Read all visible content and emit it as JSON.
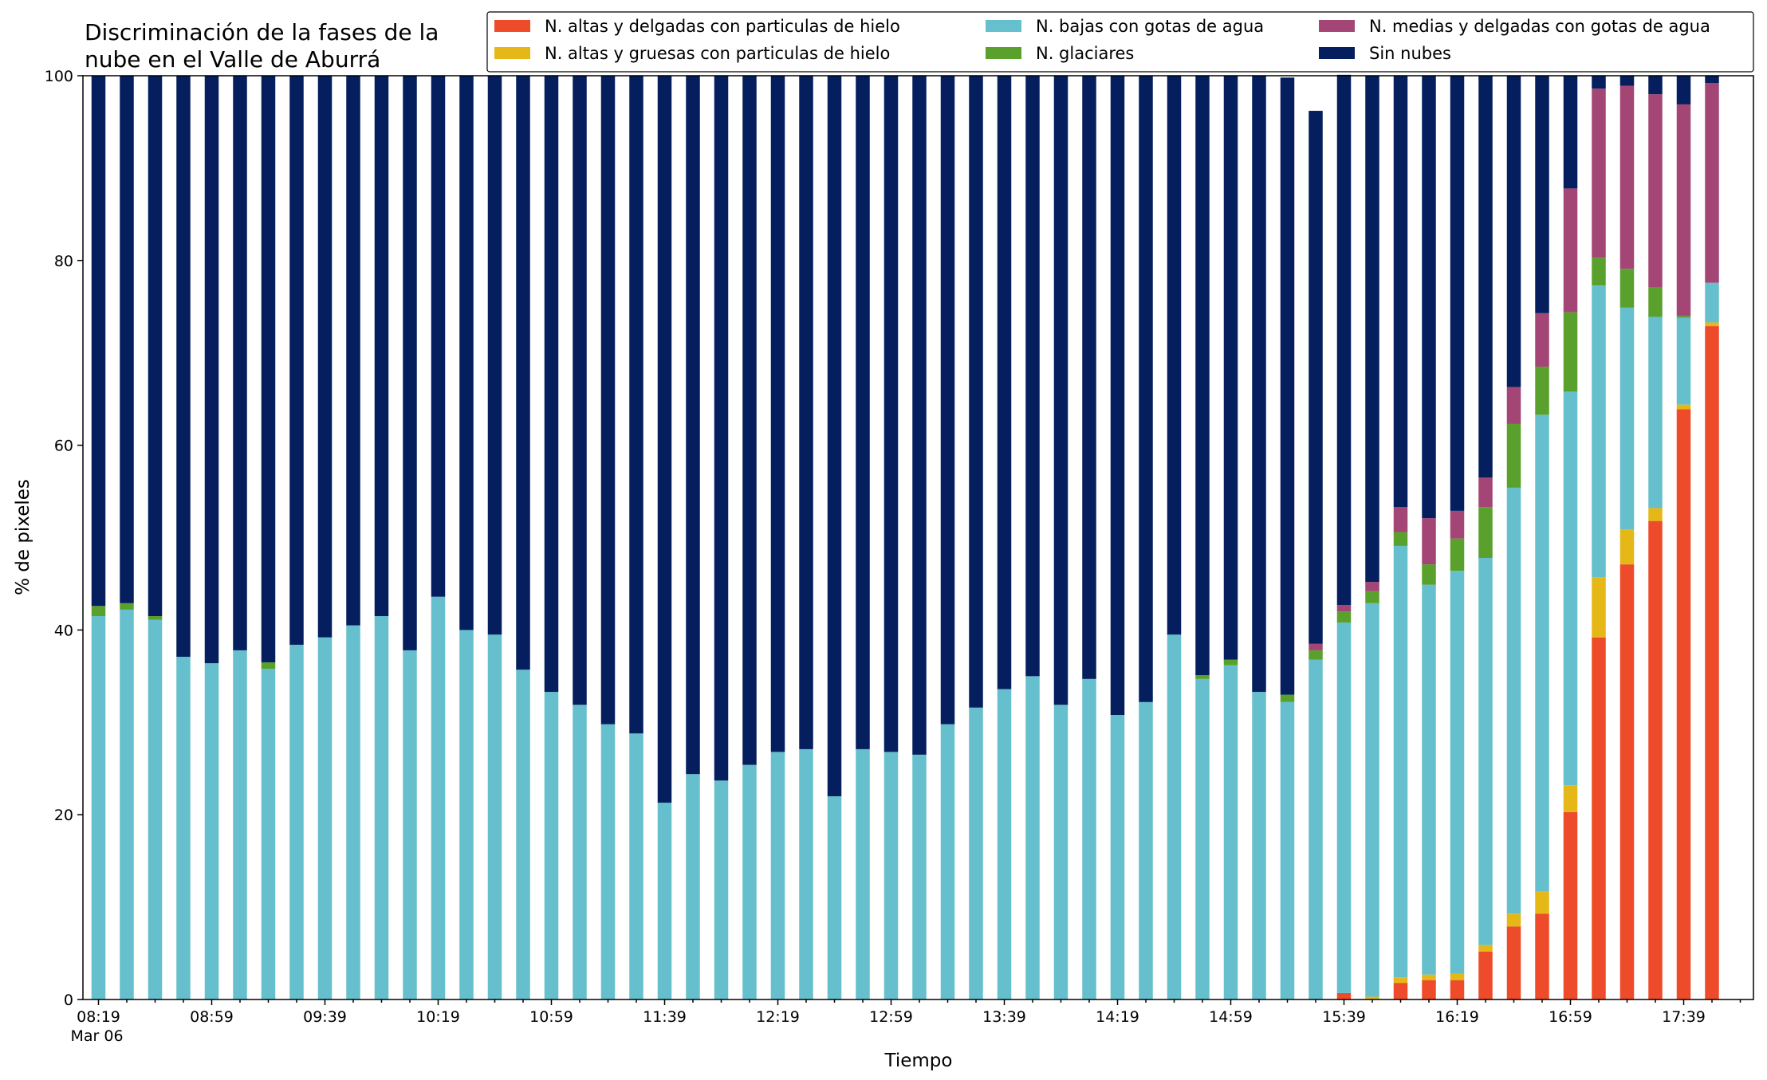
{
  "chart_data": {
    "type": "bar",
    "stacked": true,
    "title": "Discriminación de la fases de la\nnube en el Valle de Aburrá",
    "xlabel": "Tiempo",
    "ylabel": "% de pixeles",
    "ylim": [
      0,
      100
    ],
    "y_ticks": [
      0,
      20,
      40,
      60,
      80,
      100
    ],
    "x_tick_labels": [
      {
        "index": 0,
        "label": "08:19",
        "sublabel": "Mar 06"
      },
      {
        "index": 4,
        "label": "08:59"
      },
      {
        "index": 8,
        "label": "09:39"
      },
      {
        "index": 12,
        "label": "10:19"
      },
      {
        "index": 16,
        "label": "10:59"
      },
      {
        "index": 20,
        "label": "11:39"
      },
      {
        "index": 24,
        "label": "12:19"
      },
      {
        "index": 28,
        "label": "12:59"
      },
      {
        "index": 32,
        "label": "13:39"
      },
      {
        "index": 36,
        "label": "14:19"
      },
      {
        "index": 40,
        "label": "14:59"
      },
      {
        "index": 44,
        "label": "15:39"
      },
      {
        "index": 48,
        "label": "16:19"
      },
      {
        "index": 52,
        "label": "16:59"
      },
      {
        "index": 56,
        "label": "17:39"
      }
    ],
    "legend_position": "top-right",
    "grid": false,
    "series": [
      {
        "name": "N. altas y delgadas con particulas de hielo",
        "color": "#ee4b2b",
        "values": [
          0,
          0,
          0,
          0,
          0,
          0,
          0,
          0,
          0,
          0,
          0,
          0,
          0,
          0,
          0,
          0,
          0,
          0,
          0,
          0,
          0,
          0,
          0,
          0,
          0,
          0,
          0,
          0,
          0,
          0,
          0,
          0,
          0,
          0,
          0,
          0,
          0,
          0,
          0,
          0,
          0,
          0,
          0,
          0,
          0.7,
          0,
          1.8,
          2.1,
          2.1,
          5.2,
          7.9,
          9.3,
          20.3,
          39.2,
          47.1,
          51.8,
          63.9,
          72.9
        ]
      },
      {
        "name": "N. altas y gruesas con particulas de hielo",
        "color": "#e6b817",
        "values": [
          0,
          0,
          0,
          0,
          0,
          0,
          0,
          0,
          0,
          0,
          0,
          0,
          0,
          0,
          0,
          0,
          0,
          0,
          0,
          0,
          0,
          0,
          0,
          0,
          0,
          0,
          0,
          0,
          0,
          0,
          0,
          0,
          0,
          0,
          0,
          0,
          0,
          0,
          0,
          0,
          0,
          0,
          0,
          0,
          0,
          0.3,
          0.6,
          0.6,
          0.7,
          0.7,
          1.4,
          2.4,
          2.9,
          6.5,
          3.8,
          1.4,
          0.5,
          0.4
        ]
      },
      {
        "name": "N. bajas con gotas de agua",
        "color": "#66bfcc",
        "values": [
          41.5,
          42.2,
          41.1,
          37.1,
          36.4,
          37.8,
          35.8,
          38.4,
          39.2,
          40.5,
          41.5,
          37.8,
          43.6,
          40.0,
          39.5,
          35.7,
          33.3,
          31.9,
          29.8,
          28.8,
          21.3,
          24.4,
          23.7,
          25.4,
          26.8,
          27.1,
          22.0,
          27.1,
          26.8,
          26.5,
          29.8,
          31.6,
          33.6,
          35.0,
          31.9,
          34.7,
          30.8,
          32.2,
          39.5,
          34.7,
          36.2,
          33.3,
          32.2,
          36.8,
          40.1,
          42.6,
          46.7,
          42.2,
          43.6,
          41.9,
          46.1,
          51.6,
          42.6,
          31.6,
          24.0,
          20.7,
          9.4,
          4.3
        ]
      },
      {
        "name": "N. glaciares",
        "color": "#5aa02c",
        "values": [
          1.1,
          0.7,
          0.4,
          0,
          0,
          0,
          0.7,
          0,
          0,
          0,
          0,
          0,
          0,
          0,
          0,
          0,
          0,
          0,
          0,
          0,
          0,
          0,
          0,
          0,
          0,
          0,
          0,
          0,
          0,
          0,
          0,
          0,
          0,
          0,
          0,
          0,
          0,
          0,
          0,
          0.4,
          0.6,
          0,
          0.8,
          1.0,
          1.2,
          1.3,
          1.5,
          2.2,
          3.5,
          5.5,
          6.9,
          5.2,
          8.6,
          3.0,
          4.2,
          3.2,
          0.2,
          0
        ]
      },
      {
        "name": "N. medias y delgadas con gotas de agua",
        "color": "#a34575",
        "values": [
          0,
          0,
          0,
          0,
          0,
          0,
          0,
          0,
          0,
          0,
          0,
          0,
          0,
          0,
          0,
          0,
          0,
          0,
          0,
          0,
          0,
          0,
          0,
          0,
          0,
          0,
          0,
          0,
          0,
          0,
          0,
          0,
          0,
          0,
          0,
          0,
          0,
          0,
          0,
          0,
          0,
          0,
          0,
          0.7,
          0.7,
          1.0,
          2.7,
          5.0,
          3.0,
          3.2,
          4.0,
          5.8,
          13.4,
          18.3,
          19.8,
          20.9,
          22.9,
          21.6
        ]
      },
      {
        "name": "Sin nubes",
        "color": "#041e5e",
        "values": [
          57.4,
          57.1,
          58.5,
          62.9,
          63.6,
          62.2,
          63.5,
          61.6,
          60.8,
          59.5,
          58.5,
          62.2,
          56.4,
          60.0,
          60.5,
          64.3,
          66.7,
          68.1,
          70.2,
          71.2,
          78.7,
          75.6,
          76.3,
          74.6,
          73.2,
          72.9,
          78.0,
          72.9,
          73.2,
          73.5,
          70.2,
          68.4,
          66.4,
          65.0,
          68.1,
          65.3,
          69.2,
          67.8,
          60.5,
          64.9,
          63.2,
          66.7,
          66.8,
          57.7,
          57.4,
          54.8,
          46.7,
          47.9,
          47.1,
          43.5,
          33.7,
          25.7,
          12.2,
          1.4,
          1.1,
          2.0,
          3.1,
          0.8
        ]
      }
    ]
  }
}
